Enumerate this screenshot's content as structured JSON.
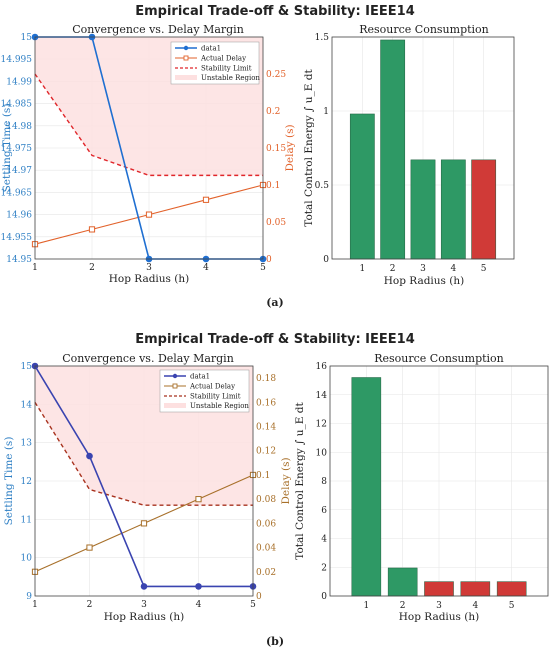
{
  "colors": {
    "blue": "#2e7fc4",
    "settling_a": "#1f6fd1",
    "settling_b": "#3a44b0",
    "orange": "#e2622b",
    "brown": "#a8702a",
    "red_dash_a": "#e0262a",
    "red_dash_b": "#a8321e",
    "unstable_fill": "#fde0e0",
    "green_bar": "#2e9965",
    "red_bar": "#d03a37",
    "grid": "#e6e6e6"
  },
  "figures": [
    {
      "suptitle": "Empirical Trade-off & Stability: IEEE14",
      "caption": "(a)",
      "left": {
        "title": "Convergence vs. Delay Margin",
        "xlabel": "Hop Radius (h)",
        "ylabel_left": "Settling Time (s)",
        "ylabel_right": "Delay (s)",
        "x_ticks": [
          "1",
          "2",
          "3",
          "4",
          "5"
        ],
        "yl_ticks": [
          "14.95",
          "14.955",
          "14.96",
          "14.965",
          "14.97",
          "14.975",
          "14.98",
          "14.985",
          "14.99",
          "14.995",
          "15"
        ],
        "yr_ticks": [
          "0",
          "0.05",
          "0.1",
          "0.15",
          "0.2",
          "0.25"
        ],
        "legend": [
          "data1",
          "Actual Delay",
          "Stability Limit",
          "Unstable Region"
        ]
      },
      "right": {
        "title": "Resource Consumption",
        "xlabel": "Hop Radius (h)",
        "ylabel": "Total Control Energy ∫ u_E dt",
        "x_ticks": [
          "1",
          "2",
          "3",
          "4",
          "5"
        ],
        "y_ticks": [
          "0",
          "0.5",
          "1",
          "1.5"
        ]
      }
    },
    {
      "suptitle": "Empirical Trade-off & Stability: IEEE14",
      "caption": "(b)",
      "left": {
        "title": "Convergence vs. Delay Margin",
        "xlabel": "Hop Radius (h)",
        "ylabel_left": "Settling Time (s)",
        "ylabel_right": "Delay (s)",
        "x_ticks": [
          "1",
          "2",
          "3",
          "4",
          "5"
        ],
        "yl_ticks": [
          "9",
          "10",
          "11",
          "12",
          "13",
          "14",
          "15"
        ],
        "yr_ticks": [
          "0",
          "0.02",
          "0.04",
          "0.06",
          "0.08",
          "0.1",
          "0.12",
          "0.14",
          "0.16",
          "0.18"
        ],
        "legend": [
          "data1",
          "Actual Delay",
          "Stability Limit",
          "Unstable Region"
        ]
      },
      "right": {
        "title": "Resource Consumption",
        "xlabel": "Hop Radius (h)",
        "ylabel": "Total Control Energy ∫ u_E dt",
        "x_ticks": [
          "1",
          "2",
          "3",
          "4",
          "5"
        ],
        "y_ticks": [
          "0",
          "2",
          "4",
          "6",
          "8",
          "10",
          "12",
          "14",
          "16"
        ]
      }
    }
  ],
  "chart_data": [
    {
      "type": "line",
      "panel": "(a) left",
      "title": "Convergence vs. Delay Margin",
      "xlabel": "Hop Radius (h)",
      "ylabel": "Settling Time (s)",
      "y2label": "Delay (s)",
      "x": [
        1,
        2,
        3,
        4,
        5
      ],
      "xlim": [
        1,
        5
      ],
      "ylim": [
        14.95,
        15
      ],
      "y2lim": [
        0,
        0.3
      ],
      "grid": true,
      "legend_position": "top-right",
      "series": [
        {
          "name": "data1",
          "axis": "left",
          "style": "solid-circle",
          "values": [
            15,
            15,
            14.95,
            14.95,
            14.95
          ]
        },
        {
          "name": "Actual Delay",
          "axis": "right",
          "style": "solid-square",
          "values": [
            0.02,
            0.04,
            0.06,
            0.08,
            0.1
          ]
        },
        {
          "name": "Stability Limit",
          "axis": "right",
          "style": "dashed",
          "values": [
            0.25,
            0.14,
            0.113,
            0.113,
            0.113
          ]
        },
        {
          "name": "Unstable Region",
          "axis": "right",
          "style": "fill-above-limit",
          "values": [
            0.25,
            0.14,
            0.113,
            0.113,
            0.113
          ]
        }
      ]
    },
    {
      "type": "bar",
      "panel": "(a) right",
      "title": "Resource Consumption",
      "xlabel": "Hop Radius (h)",
      "ylabel": "Total Control Energy ∫ u_E dt",
      "categories": [
        "1",
        "2",
        "3",
        "4",
        "5"
      ],
      "values": [
        0.98,
        1.48,
        0.67,
        0.67,
        0.67
      ],
      "bar_colors": [
        "green",
        "green",
        "green",
        "green",
        "red"
      ],
      "ylim": [
        0,
        1.5
      ],
      "grid": true
    },
    {
      "type": "line",
      "panel": "(b) left",
      "title": "Convergence vs. Delay Margin",
      "xlabel": "Hop Radius (h)",
      "ylabel": "Settling Time (s)",
      "y2label": "Delay (s)",
      "x": [
        1,
        2,
        3,
        4,
        5
      ],
      "xlim": [
        1,
        5
      ],
      "ylim": [
        9,
        15
      ],
      "y2lim": [
        0,
        0.19
      ],
      "grid": true,
      "legend_position": "top-right",
      "series": [
        {
          "name": "data1",
          "axis": "left",
          "style": "solid-circle",
          "values": [
            15,
            12.65,
            9.25,
            9.25,
            9.25
          ]
        },
        {
          "name": "Actual Delay",
          "axis": "right",
          "style": "solid-square",
          "values": [
            0.02,
            0.04,
            0.06,
            0.08,
            0.1
          ]
        },
        {
          "name": "Stability Limit",
          "axis": "right",
          "style": "dashed",
          "values": [
            0.16,
            0.088,
            0.075,
            0.075,
            0.075
          ]
        },
        {
          "name": "Unstable Region",
          "axis": "right",
          "style": "fill-above-limit",
          "values": [
            0.16,
            0.088,
            0.075,
            0.075,
            0.075
          ]
        }
      ]
    },
    {
      "type": "bar",
      "panel": "(b) right",
      "title": "Resource Consumption",
      "xlabel": "Hop Radius (h)",
      "ylabel": "Total Control Energy ∫ u_E dt",
      "categories": [
        "1",
        "2",
        "3",
        "4",
        "5"
      ],
      "values": [
        15.2,
        1.95,
        1.0,
        1.0,
        1.0
      ],
      "bar_colors": [
        "green",
        "green",
        "red",
        "red",
        "red"
      ],
      "ylim": [
        0,
        16
      ],
      "grid": true
    }
  ]
}
